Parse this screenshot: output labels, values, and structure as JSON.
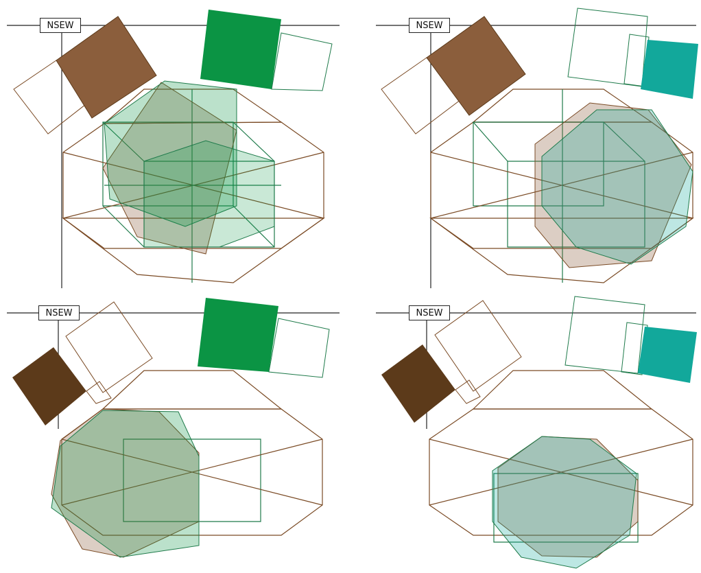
{
  "colors": {
    "brown": "#8B5E3C",
    "dark_brown": "#5C3A1A",
    "green": "#0B9444",
    "teal": "#12A89B",
    "brown_line": "#7A4A24",
    "green_line": "#1E7A4A",
    "axis": "#222222"
  },
  "panels": [
    {
      "id": "top-left",
      "compass_label": "NSEW",
      "accent": "green",
      "tile": "brown"
    },
    {
      "id": "top-right",
      "compass_label": "NSEW",
      "accent": "teal",
      "tile": "brown"
    },
    {
      "id": "bottom-left",
      "compass_label": "NSEW",
      "accent": "green",
      "tile": "dark_brown"
    },
    {
      "id": "bottom-right",
      "compass_label": "NSEW",
      "accent": "teal",
      "tile": "dark_brown"
    }
  ]
}
